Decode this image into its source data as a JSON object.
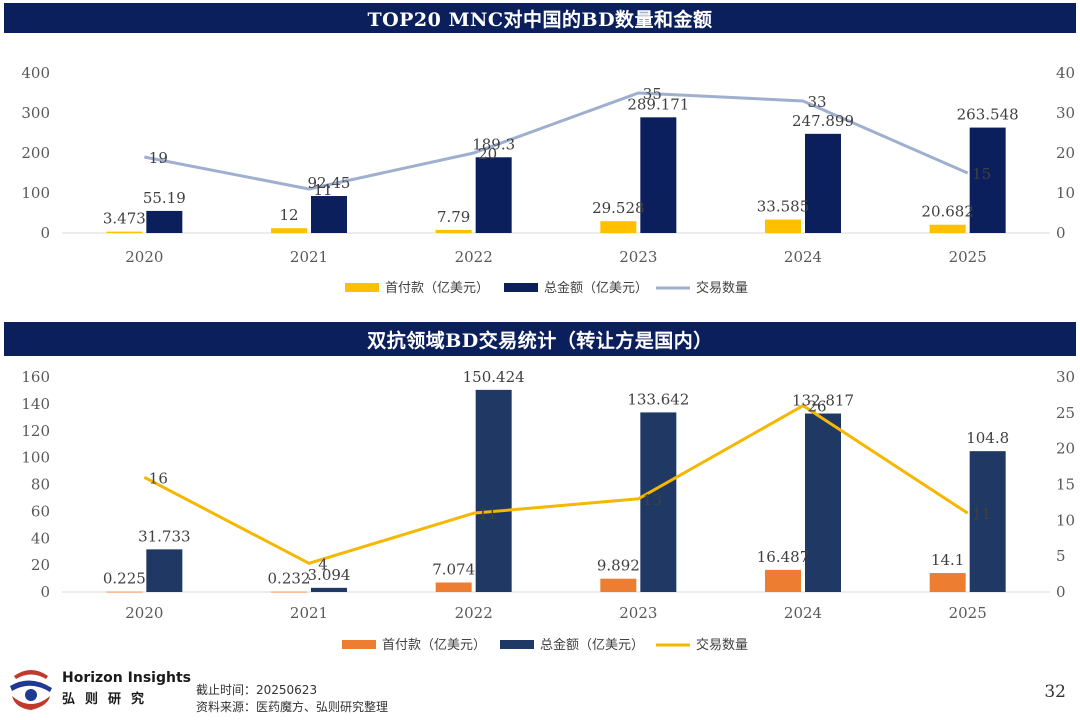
{
  "chart_data": [
    {
      "type": "bar",
      "title": "TOP20 MNC对中国的BD数量和金额",
      "categories": [
        "2020",
        "2021",
        "2022",
        "2023",
        "2024",
        "2025"
      ],
      "series": [
        {
          "name": "首付款（亿美元）",
          "type": "bar",
          "axis": "left",
          "values": [
            3.473,
            12,
            7.79,
            29.528,
            33.585,
            20.682
          ],
          "labels": [
            "3.473",
            "12",
            "7.79",
            "29.528",
            "33.585",
            "20.682"
          ],
          "color": "#ffc000"
        },
        {
          "name": "总金额（亿美元）",
          "type": "bar",
          "axis": "left",
          "values": [
            55.19,
            92.45,
            189.3,
            289.171,
            247.899,
            263.548
          ],
          "labels": [
            "55.19",
            "92.45",
            "189.3",
            "289.171",
            "247.899",
            "263.548"
          ],
          "color": "#0b1f5c"
        },
        {
          "name": "交易数量",
          "type": "line",
          "axis": "right",
          "values": [
            19,
            11,
            20,
            35,
            33,
            15
          ],
          "labels": [
            "19",
            "11",
            "20",
            "35",
            "33",
            "15"
          ],
          "color": "#9fb0cf"
        }
      ],
      "ylim": [
        0,
        400
      ],
      "yticks": [
        "0",
        "100",
        "200",
        "300",
        "400"
      ],
      "y2lim": [
        0,
        40
      ],
      "y2ticks": [
        "0",
        "10",
        "20",
        "30",
        "40"
      ],
      "legend": "bottom",
      "grid": false
    },
    {
      "type": "bar",
      "title": "双抗领域BD交易统计（转让方是国内）",
      "categories": [
        "2020",
        "2021",
        "2022",
        "2023",
        "2024",
        "2025"
      ],
      "series": [
        {
          "name": "首付款（亿美元）",
          "type": "bar",
          "axis": "left",
          "values": [
            0.225,
            0.232,
            7.074,
            9.892,
            16.487,
            14.1
          ],
          "labels": [
            "0.225",
            "0.232",
            "7.074",
            "9.892",
            "16.487",
            "14.1"
          ],
          "color": "#ed7d31"
        },
        {
          "name": "总金额（亿美元）",
          "type": "bar",
          "axis": "left",
          "values": [
            31.733,
            3.094,
            150.424,
            133.642,
            132.817,
            104.8
          ],
          "labels": [
            "31.733",
            "3.094",
            "150.424",
            "133.642",
            "132.817",
            "104.8"
          ],
          "color": "#1f3864"
        },
        {
          "name": "交易数量",
          "type": "line",
          "axis": "right",
          "values": [
            16,
            4,
            11,
            13,
            26,
            11
          ],
          "labels": [
            "16",
            "4",
            "11",
            "13",
            "26",
            "11"
          ],
          "color": "#f5b700"
        }
      ],
      "ylim": [
        0,
        160
      ],
      "yticks": [
        "0",
        "20",
        "40",
        "60",
        "80",
        "100",
        "120",
        "140",
        "160"
      ],
      "y2lim": [
        0,
        30
      ],
      "y2ticks": [
        "0",
        "5",
        "10",
        "15",
        "20",
        "25",
        "30"
      ],
      "legend": "bottom",
      "grid": false
    }
  ],
  "footer": {
    "brand_en": "Horizon Insights",
    "brand_cn": "弘则研究",
    "cutoff": "截止时间：20250623",
    "source": "资料来源：医药魔方、弘则研究整理",
    "page": "32"
  }
}
